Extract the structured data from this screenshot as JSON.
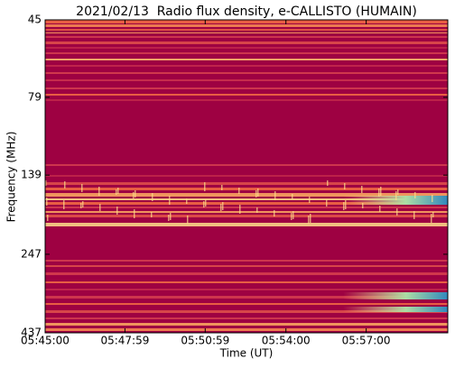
{
  "chart_data": {
    "type": "spectrogram",
    "title": "2021/02/13  Radio flux density, e-CALLISTO (HUMAIN)",
    "x_label": "Time (UT)",
    "y_label": "Frequency (MHz)",
    "xlim": [
      20700,
      21603
    ],
    "xticks": [
      {
        "value": 20700,
        "label": "05:45:00"
      },
      {
        "value": 20879,
        "label": "05:47:59"
      },
      {
        "value": 21059,
        "label": "05:50:59"
      },
      {
        "value": 21240,
        "label": "05:54:00"
      },
      {
        "value": 21420,
        "label": "05:57:00"
      }
    ],
    "ylim": [
      45,
      437
    ],
    "yticks": [
      45,
      79,
      139,
      247,
      437
    ],
    "y_log": true,
    "y_inverted": true
  }
}
